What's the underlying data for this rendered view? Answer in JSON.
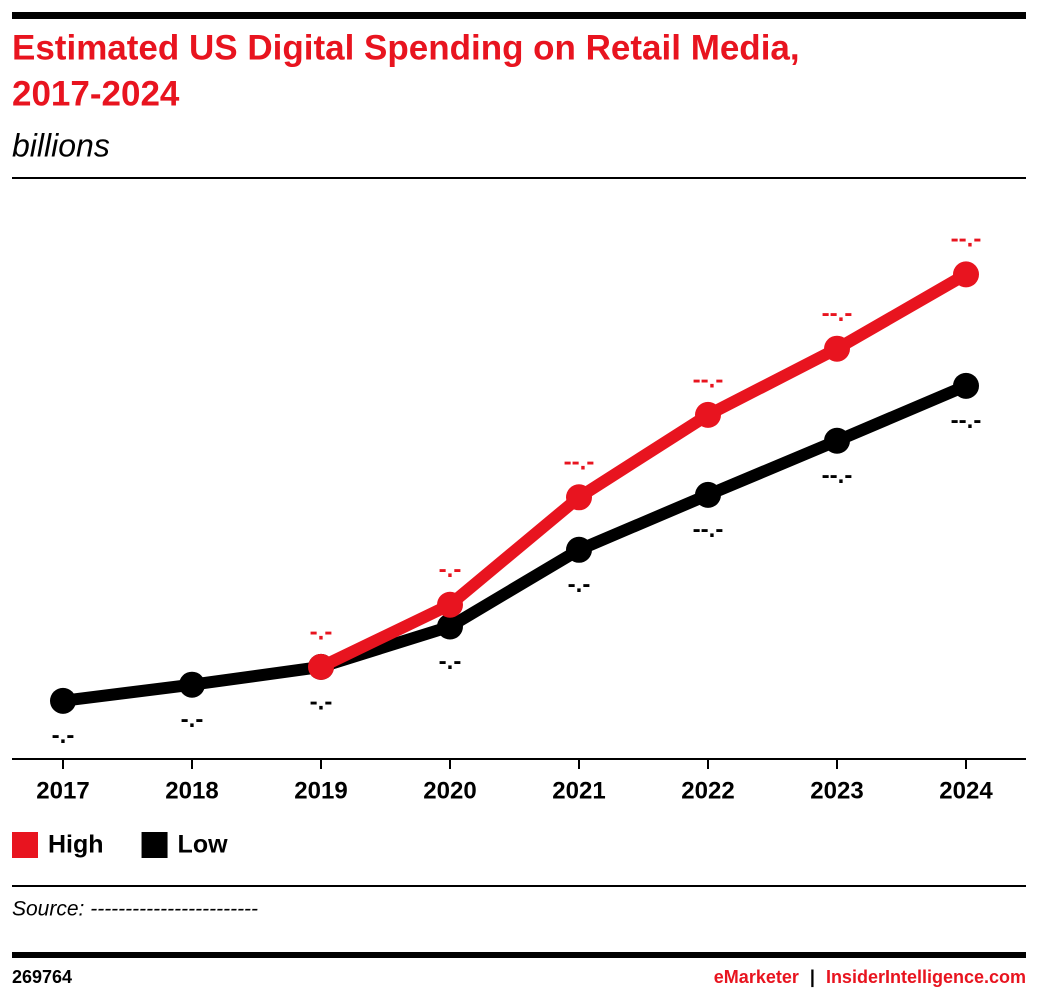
{
  "chart_data": {
    "type": "line",
    "title": "Estimated US Digital Spending on Retail Media,",
    "title_line2": "2017-2024",
    "subtitle": "billions",
    "categories": [
      "2017",
      "2018",
      "2019",
      "2020",
      "2021",
      "2022",
      "2023",
      "2024"
    ],
    "series": [
      {
        "name": "High",
        "color": "#e8141f",
        "values": [
          null,
          null,
          11.4,
          19.1,
          32.4,
          42.6,
          50.8,
          60.0
        ],
        "value_labels": [
          null,
          null,
          "-.-",
          "-.-",
          "--.-",
          "--.-",
          "--.-",
          "--.-"
        ]
      },
      {
        "name": "Low",
        "color": "#000000",
        "values": [
          7.2,
          9.2,
          11.4,
          16.4,
          25.9,
          32.7,
          39.4,
          46.2
        ],
        "value_labels": [
          "-.-",
          "-.-",
          "-.-",
          "-.-",
          "-.-",
          "--.-",
          "--.-",
          "--.-"
        ]
      }
    ],
    "ylim": [
      0,
      65
    ],
    "grid": false,
    "legend": "bottom-left",
    "source": "Source: ------------------------",
    "footer_id": "269764",
    "footer_brand": "eMarketer",
    "footer_sep": "|",
    "footer_site": "InsiderIntelligence.com"
  }
}
